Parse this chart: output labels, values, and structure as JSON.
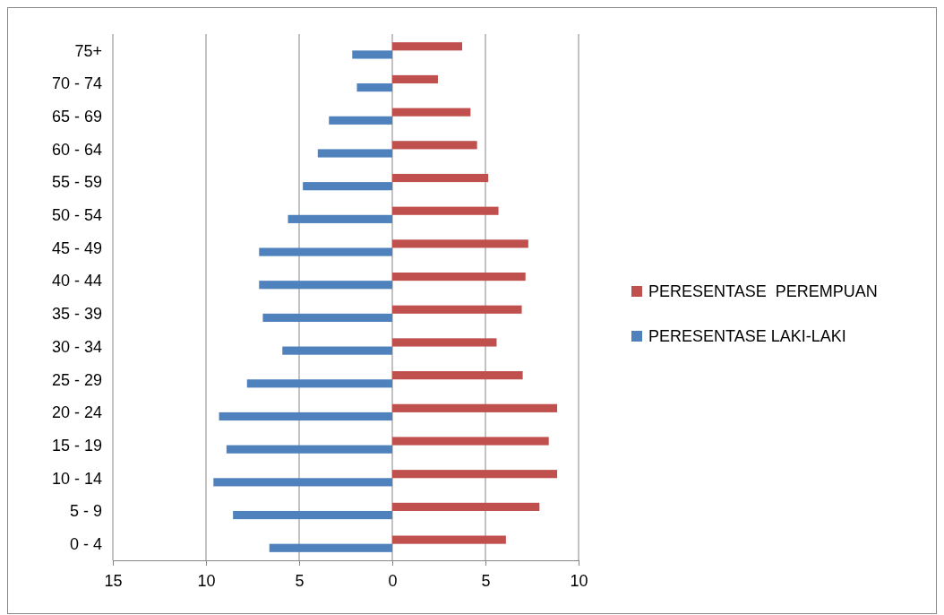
{
  "chart_data": {
    "type": "bar",
    "orientation": "horizontal",
    "categories": [
      "75+",
      "70 - 74",
      "65 - 69",
      "60 - 64",
      "55 - 59",
      "50 - 54",
      "45 - 49",
      "40 - 44",
      "35 - 39",
      "30 - 34",
      "25 - 29",
      "20 - 24",
      "15 - 19",
      "10 - 14",
      "5 - 9",
      "0 - 4"
    ],
    "series": [
      {
        "name": "PERESENTASE  PEREMPUAN",
        "color": "#c0504d",
        "values": [
          3.75,
          2.45,
          4.2,
          4.55,
          5.15,
          5.7,
          7.3,
          7.15,
          6.95,
          5.6,
          7.0,
          8.85,
          8.4,
          8.85,
          7.9,
          6.1
        ]
      },
      {
        "name": "PERESENTASE LAKI-LAKI",
        "color": "#4f81bd",
        "values": [
          -2.15,
          -1.9,
          -3.4,
          -4.0,
          -4.8,
          -5.6,
          -7.15,
          -7.15,
          -6.95,
          -5.9,
          -7.8,
          -9.3,
          -8.9,
          -9.6,
          -8.55,
          -6.6
        ]
      }
    ],
    "xlim": [
      -15,
      10
    ],
    "xticks": [
      {
        "value": -15,
        "label": "15"
      },
      {
        "value": -10,
        "label": "10"
      },
      {
        "value": -5,
        "label": "5"
      },
      0,
      5,
      10
    ],
    "grid": "x",
    "legend": "right"
  }
}
